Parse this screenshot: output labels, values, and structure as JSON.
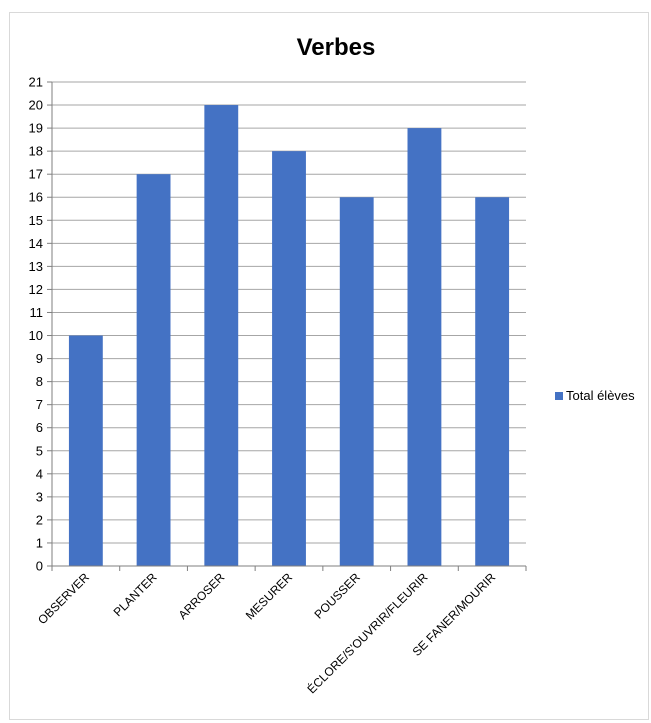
{
  "chart_data": {
    "type": "bar",
    "title": "Verbes",
    "categories": [
      "OBSERVER",
      "PLANTER",
      "ARROSER",
      "MESURER",
      "POUSSER",
      "ÉCLORE/S'OUVRIR/FLEURIR",
      "SE FANER/MOURIR"
    ],
    "series": [
      {
        "name": "Total élèves",
        "values": [
          10,
          17,
          20,
          18,
          16,
          19,
          16
        ],
        "color": "#4472c4"
      }
    ],
    "ylim": [
      0,
      21
    ],
    "ytick_step": 1,
    "grid": true,
    "legend_position": "right",
    "xlabel": "",
    "ylabel": ""
  }
}
